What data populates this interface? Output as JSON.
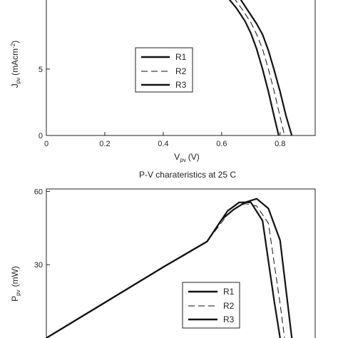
{
  "chart_data": [
    {
      "type": "line",
      "title": "",
      "xlabel": "V",
      "xlabel_sub": "pv",
      "xlabel_unit": "(V)",
      "ylabel": "J",
      "ylabel_sub": "pv",
      "ylabel_unit": "(mAcm",
      "ylabel_sup": "-2",
      "ylabel_close": ")",
      "xlim": [
        0,
        0.92
      ],
      "ylim": [
        0,
        10.2
      ],
      "x_ticks": [
        0,
        0.2,
        0.4,
        0.6,
        0.8
      ],
      "x_tick_labels": [
        "0",
        "0.2",
        "0.4",
        "0.6",
        "0.8"
      ],
      "y_ticks": [
        0,
        5
      ],
      "y_tick_labels": [
        "0",
        "5"
      ],
      "grid": false,
      "legend_position": "center-left",
      "series": [
        {
          "name": "R1",
          "style": "solid",
          "x": [
            0.62,
            0.65,
            0.68,
            0.7,
            0.72,
            0.74,
            0.76,
            0.78,
            0.795
          ],
          "y": [
            10.4,
            9.6,
            8.6,
            7.7,
            6.5,
            5.0,
            3.3,
            1.4,
            0.0
          ]
        },
        {
          "name": "R2",
          "style": "dashed",
          "x": [
            0.64,
            0.67,
            0.7,
            0.72,
            0.74,
            0.76,
            0.78,
            0.8,
            0.815
          ],
          "y": [
            10.4,
            9.5,
            8.5,
            7.6,
            6.5,
            5.0,
            3.3,
            1.4,
            0.0
          ]
        },
        {
          "name": "R3",
          "style": "solid",
          "x": [
            0.66,
            0.69,
            0.72,
            0.74,
            0.76,
            0.78,
            0.8,
            0.82,
            0.84
          ],
          "y": [
            10.4,
            9.4,
            8.4,
            7.6,
            6.4,
            4.9,
            3.3,
            1.5,
            0.0
          ]
        }
      ]
    },
    {
      "type": "line",
      "title": "P-V charateristics at 25 C",
      "xlabel": "",
      "ylabel": "P",
      "ylabel_sub": "pv",
      "ylabel_unit": "(mW)",
      "xlim": [
        0,
        0.92
      ],
      "ylim": [
        0,
        61
      ],
      "y_ticks": [
        30,
        60
      ],
      "y_tick_labels": [
        "30",
        "60"
      ],
      "grid": false,
      "legend_position": "bottom-right",
      "series": [
        {
          "name": "R1",
          "style": "solid",
          "x": [
            0.0,
            0.2,
            0.4,
            0.55,
            0.62,
            0.66,
            0.7,
            0.74,
            0.78,
            0.8
          ],
          "y": [
            0,
            14.5,
            29,
            39.5,
            52,
            55.5,
            55.5,
            48,
            15,
            0
          ]
        },
        {
          "name": "R2",
          "style": "dashed",
          "x": [
            0.0,
            0.2,
            0.4,
            0.55,
            0.62,
            0.65,
            0.68,
            0.72,
            0.76,
            0.8,
            0.815
          ],
          "y": [
            0,
            14.5,
            29,
            39.5,
            50.5,
            53.5,
            55,
            54,
            47,
            14,
            0
          ]
        },
        {
          "name": "R3",
          "style": "solid",
          "x": [
            0.0,
            0.2,
            0.4,
            0.55,
            0.6,
            0.64,
            0.68,
            0.72,
            0.76,
            0.8,
            0.84
          ],
          "y": [
            0,
            14.5,
            29,
            39.5,
            48.5,
            52.5,
            55.5,
            57,
            53,
            40,
            0
          ]
        }
      ]
    }
  ]
}
